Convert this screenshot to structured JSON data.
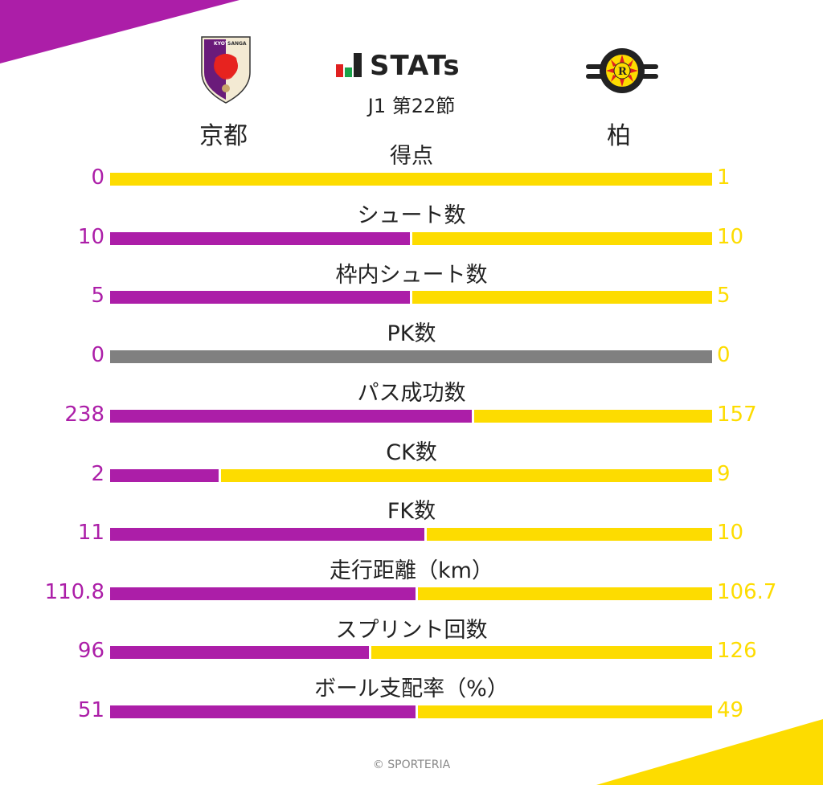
{
  "colors": {
    "home": "#ac1ea8",
    "away": "#fddc00",
    "neutral": "#808080",
    "text": "#222222",
    "footer": "#888888"
  },
  "header": {
    "brand": "STATs",
    "round": "J1 第22節",
    "home_team": "京都",
    "away_team": "柏",
    "home_logo_text": "KYOTO SANGA",
    "away_logo_text_top": "KASHIWA",
    "away_logo_text_bottom": "REYSOL"
  },
  "footer": {
    "copyright": "© SPORTERIA"
  },
  "chart_data": {
    "type": "bar",
    "title": "J1 第22節 京都 vs 柏",
    "orientation": "horizontal-stacked-comparison",
    "categories": [
      "得点",
      "シュート数",
      "枠内シュート数",
      "PK数",
      "パス成功数",
      "CK数",
      "FK数",
      "走行距離（km）",
      "スプリント回数",
      "ボール支配率（%）"
    ],
    "series": [
      {
        "name": "京都",
        "values": [
          0,
          10,
          5,
          0,
          238,
          2,
          11,
          110.8,
          96,
          51
        ]
      },
      {
        "name": "柏",
        "values": [
          1,
          10,
          5,
          0,
          157,
          9,
          10,
          106.7,
          126,
          49
        ]
      }
    ],
    "labels": {
      "home": [
        "0",
        "10",
        "5",
        "0",
        "238",
        "2",
        "11",
        "110.8",
        "96",
        "51"
      ],
      "away": [
        "1",
        "10",
        "5",
        "0",
        "157",
        "9",
        "10",
        "106.7",
        "126",
        "49"
      ]
    },
    "legend": [
      "京都",
      "柏"
    ],
    "grid": false
  }
}
